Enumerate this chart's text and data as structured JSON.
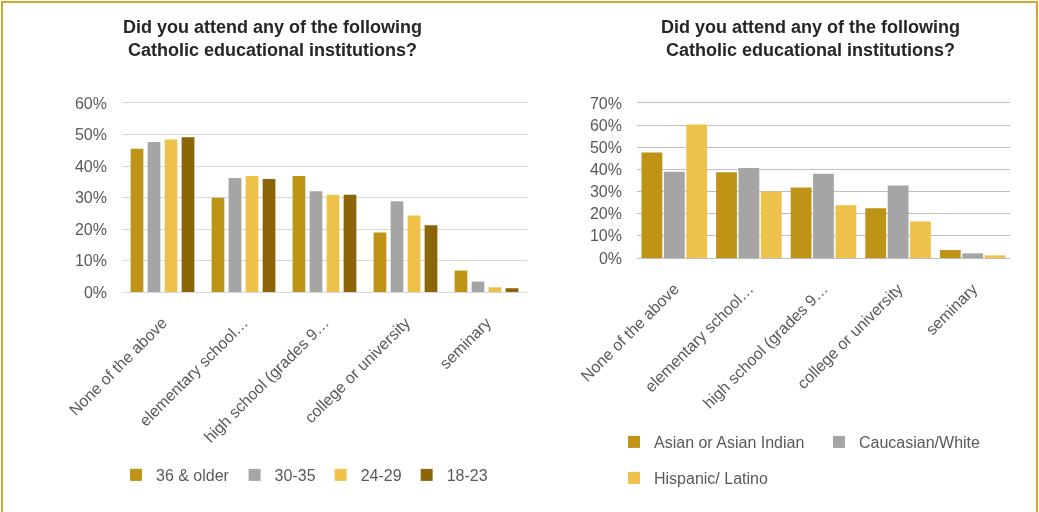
{
  "chart_data": [
    {
      "type": "bar",
      "title": "Did you attend any of the following Catholic educational institutions?",
      "categories": [
        "None of the above",
        "elementary school…",
        "high school (grades 9…",
        "college or university",
        "seminary"
      ],
      "series": [
        {
          "name": "36 & older",
          "color": "#bf9316",
          "values": [
            45.5,
            29.9,
            36.8,
            18.9,
            6.8
          ]
        },
        {
          "name": "30-35",
          "color": "#a5a5a5",
          "values": [
            47.6,
            36.2,
            32.0,
            28.8,
            3.3
          ]
        },
        {
          "name": "24-29",
          "color": "#eec24a",
          "values": [
            48.4,
            36.8,
            30.9,
            24.3,
            1.5
          ]
        },
        {
          "name": "18-23",
          "color": "#8c6508",
          "values": [
            49.1,
            35.9,
            30.9,
            21.2,
            1.2
          ]
        }
      ],
      "ylim": [
        0,
        60
      ],
      "yticks": [
        {
          "value": 0,
          "label": "0%"
        },
        {
          "value": 10,
          "label": "10%"
        },
        {
          "value": 20,
          "label": "20%"
        },
        {
          "value": 30,
          "label": "30%"
        },
        {
          "value": 40,
          "label": "40%"
        },
        {
          "value": 50,
          "label": "50%"
        },
        {
          "value": 60,
          "label": "60%"
        }
      ],
      "grid": "y",
      "legend": "bottom"
    },
    {
      "type": "bar",
      "title": "Did you attend any of the following Catholic educational institutions?",
      "categories": [
        "None of the above",
        "elementary school…",
        "high school (grades 9…",
        "college or university",
        "seminary"
      ],
      "series": [
        {
          "name": "Asian or Asian Indian",
          "color": "#bf9316",
          "values": [
            47.7,
            38.7,
            31.8,
            22.5,
            3.6
          ]
        },
        {
          "name": "Caucasian/White",
          "color": "#a5a5a5",
          "values": [
            39.0,
            40.6,
            38.1,
            32.7,
            2.1
          ]
        },
        {
          "name": "Hispanic/ Latino",
          "color": "#eec24a",
          "values": [
            60.3,
            30.0,
            23.8,
            16.5,
            1.2
          ]
        }
      ],
      "ylim": [
        0,
        70
      ],
      "yticks": [
        {
          "value": 0,
          "label": "0%"
        },
        {
          "value": 10,
          "label": "10%"
        },
        {
          "value": 20,
          "label": "20%"
        },
        {
          "value": 30,
          "label": "30%"
        },
        {
          "value": 40,
          "label": "40%"
        },
        {
          "value": 50,
          "label": "50%"
        },
        {
          "value": 60,
          "label": "60%"
        },
        {
          "value": 70,
          "label": "70%"
        }
      ],
      "grid": "y",
      "legend": "bottom"
    }
  ]
}
